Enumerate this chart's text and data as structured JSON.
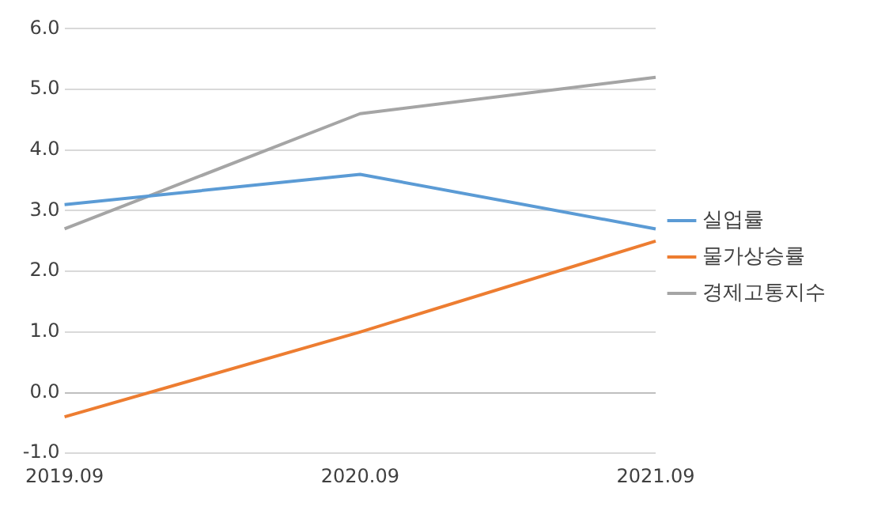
{
  "chart_data": {
    "type": "line",
    "categories": [
      "2019.09",
      "2020.09",
      "2021.09"
    ],
    "series": [
      {
        "name": "실업률",
        "color": "#5b9bd5",
        "values": [
          3.1,
          3.6,
          2.7
        ]
      },
      {
        "name": "물가상승률",
        "color": "#ed7d31",
        "values": [
          -0.4,
          1.0,
          2.5
        ]
      },
      {
        "name": "경제고통지수",
        "color": "#a5a5a5",
        "values": [
          2.7,
          4.6,
          5.2
        ]
      }
    ],
    "ylim": [
      -1,
      6
    ],
    "yticks": [
      {
        "value": -1,
        "label": "-1.0"
      },
      {
        "value": 0,
        "label": "0.0"
      },
      {
        "value": 1,
        "label": "1.0"
      },
      {
        "value": 2,
        "label": "2.0"
      },
      {
        "value": 3,
        "label": "3.0"
      },
      {
        "value": 4,
        "label": "4.0"
      },
      {
        "value": 5,
        "label": "5.0"
      },
      {
        "value": 6,
        "label": "6.0"
      }
    ],
    "grid": "y",
    "legend": "right",
    "marker": "none",
    "line_style": "solid"
  }
}
